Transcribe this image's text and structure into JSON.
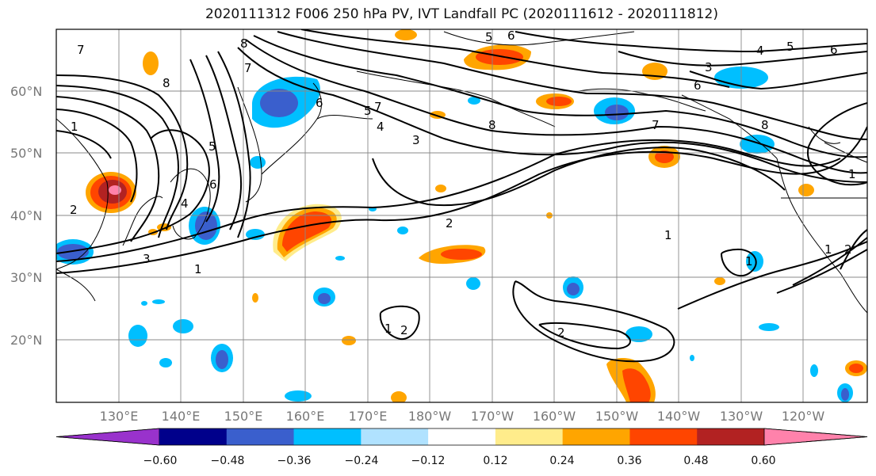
{
  "title": "2020111312 F006 250 hPa PV, IVT Landfall PC (2020111612 - 2020111812)",
  "lat_labels": [
    "60°N",
    "50°N",
    "40°N",
    "30°N",
    "20°N"
  ],
  "lon_labels": [
    "130°E",
    "140°E",
    "150°E",
    "160°E",
    "170°E",
    "180°W",
    "170°W",
    "160°W",
    "150°W",
    "140°W",
    "130°W",
    "120°W"
  ],
  "colorbar": {
    "ticks": [
      "−0.60",
      "−0.48",
      "−0.36",
      "−0.24",
      "−0.12",
      "0.12",
      "0.24",
      "0.36",
      "0.48",
      "0.60"
    ],
    "colors": [
      "#9932cc",
      "#00008b",
      "#3a5fcd",
      "#00bfff",
      "#b0e2ff",
      "#ffffff",
      "#ffec8b",
      "#ffa500",
      "#ff4500",
      "#b22222",
      "#ff82ab"
    ]
  },
  "contour_labels": [
    "7",
    "8",
    "7",
    "8",
    "1",
    "2",
    "3",
    "4",
    "5",
    "6",
    "7",
    "8",
    "2",
    "1",
    "2",
    "3",
    "4",
    "5",
    "6",
    "5",
    "6",
    "4",
    "5",
    "6",
    "3",
    "6",
    "7",
    "8",
    "1",
    "2",
    "2",
    "1",
    "1",
    "1",
    "1"
  ]
}
